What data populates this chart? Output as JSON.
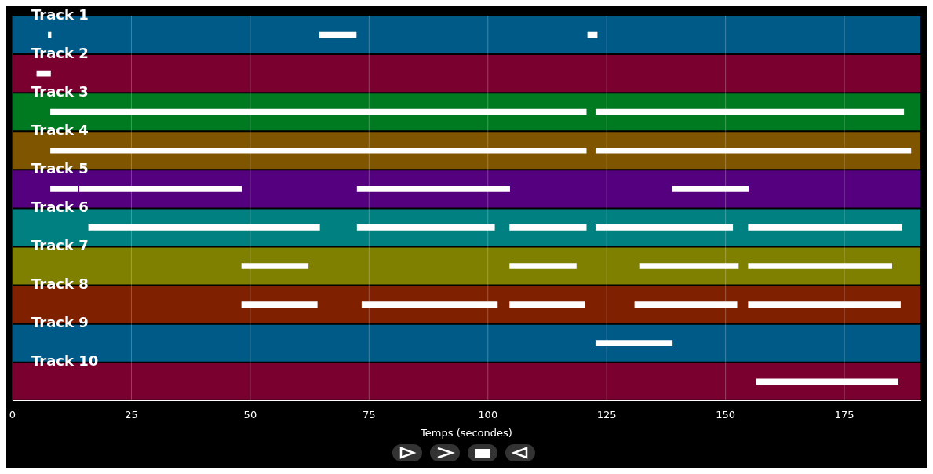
{
  "chart_data": {
    "type": "bar",
    "orientation": "horizontal",
    "xlabel": "Temps (secondes)",
    "categories": [
      "Track 1",
      "Track 2",
      "Track 3",
      "Track 4",
      "Track 5",
      "Track 6",
      "Track 7",
      "Track 8",
      "Track 9",
      "Track 10"
    ],
    "series": [
      {
        "color": "#ffffff",
        "base": [
          7.5,
          5.1,
          8,
          8,
          8,
          16,
          48.2,
          48.2,
          122.7,
          156.5
        ],
        "values": [
          0.6,
          2.9,
          112.7,
          112.7,
          5.8,
          48.6,
          14,
          15.9,
          16.1,
          29.8
        ]
      },
      {
        "color": "#ffffff",
        "base": [
          64.6,
          null,
          122.7,
          122.7,
          14.1,
          72.5,
          104.6,
          73.5,
          null,
          null
        ],
        "values": [
          7.7,
          null,
          64.8,
          66.3,
          34.1,
          28.9,
          14,
          28.5,
          null,
          null
        ]
      },
      {
        "color": "#ffffff",
        "base": [
          121,
          null,
          null,
          null,
          72.5,
          104.6,
          131.9,
          104.6,
          null,
          null
        ],
        "values": [
          2,
          null,
          null,
          null,
          32.1,
          16.1,
          20.8,
          15.8,
          null,
          null
        ]
      },
      {
        "color": "#ffffff",
        "base": [
          null,
          null,
          null,
          null,
          138.8,
          122.7,
          154.8,
          130.9,
          null,
          null
        ],
        "values": [
          null,
          null,
          null,
          null,
          16,
          28.8,
          30.2,
          21.5,
          null,
          null
        ]
      },
      {
        "color": "#ffffff",
        "base": [
          null,
          null,
          null,
          null,
          null,
          154.8,
          null,
          154.8,
          null,
          null
        ],
        "values": [
          null,
          null,
          null,
          null,
          null,
          32.3,
          null,
          32,
          null,
          null
        ]
      }
    ],
    "bands": [
      {
        "axis": "y",
        "from": "Track 1",
        "to": "Track 1",
        "color": "#005a87"
      },
      {
        "axis": "y",
        "from": "Track 2",
        "to": "Track 2",
        "color": "#7a0030"
      },
      {
        "axis": "y",
        "from": "Track 3",
        "to": "Track 3",
        "color": "#007a20"
      },
      {
        "axis": "y",
        "from": "Track 4",
        "to": "Track 4",
        "color": "#7f5500"
      },
      {
        "axis": "y",
        "from": "Track 5",
        "to": "Track 5",
        "color": "#55007f"
      },
      {
        "axis": "y",
        "from": "Track 6",
        "to": "Track 6",
        "color": "#008080"
      },
      {
        "axis": "y",
        "from": "Track 7",
        "to": "Track 7",
        "color": "#7f7f00"
      },
      {
        "axis": "y",
        "from": "Track 8",
        "to": "Track 8",
        "color": "#7f2000"
      },
      {
        "axis": "y",
        "from": "Track 9",
        "to": "Track 9",
        "color": "#005a87"
      },
      {
        "axis": "y",
        "from": "Track 10",
        "to": "Track 10",
        "color": "#7a0030"
      }
    ],
    "xlim": [
      0,
      191
    ],
    "xticks": [
      0,
      25,
      50,
      75,
      100,
      125,
      150,
      175
    ],
    "grid": "x",
    "legend": false
  }
}
